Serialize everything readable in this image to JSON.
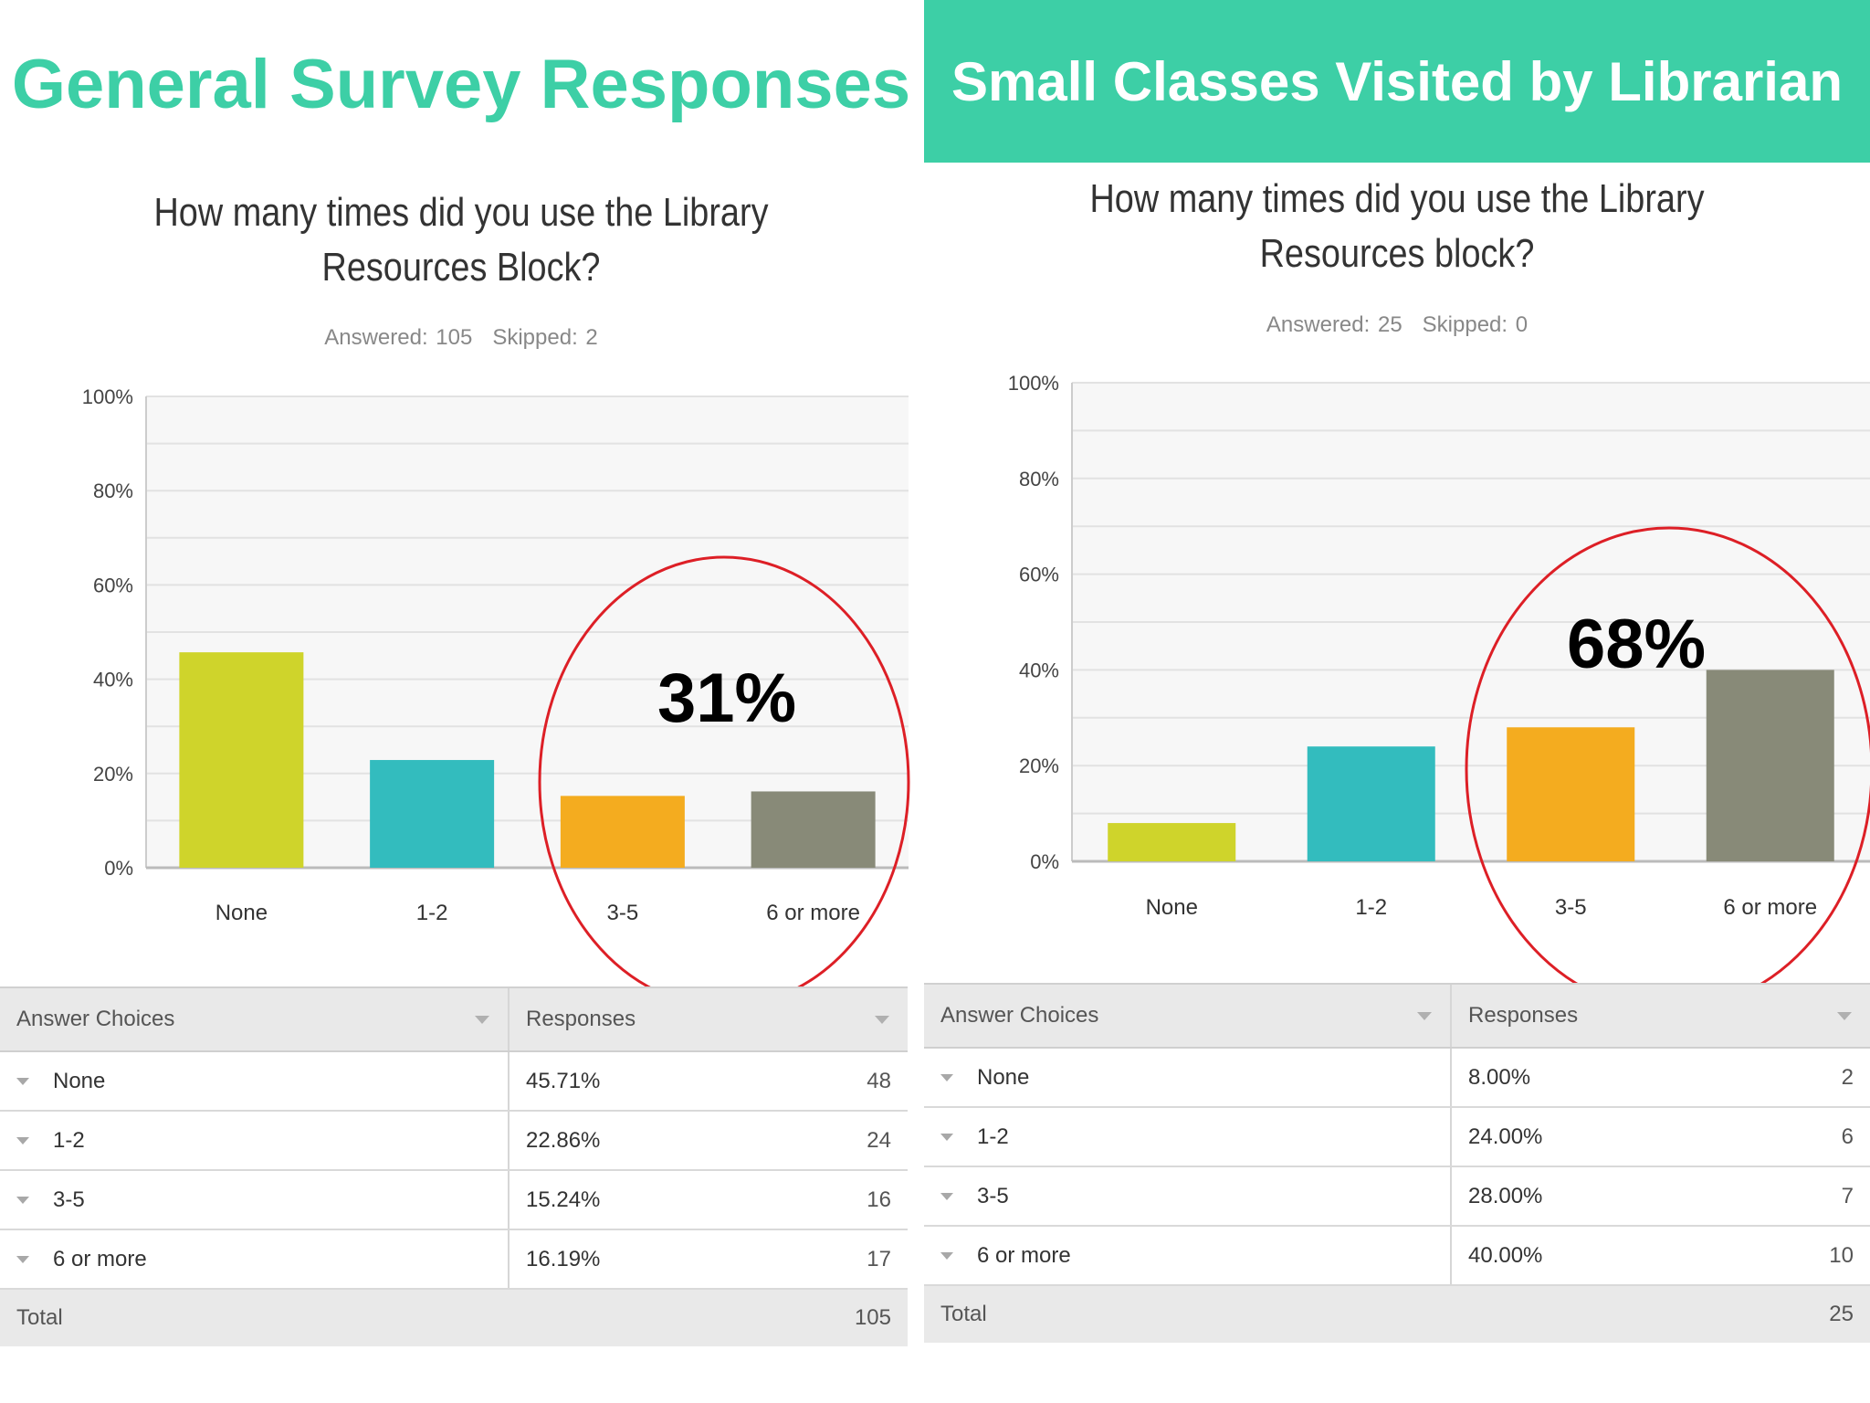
{
  "panels": [
    {
      "heading": "General Survey Responses",
      "question_line1": "How many times did you use the Library",
      "question_line2": "Resources Block?",
      "answered": "Answered: 105",
      "skipped": "Skipped: 2",
      "callout": "31%",
      "table": {
        "col1": "Answer Choices",
        "col2": "Responses",
        "rows": [
          {
            "choice": "None",
            "percent": "45.71%",
            "count": "48"
          },
          {
            "choice": "1-2",
            "percent": "22.86%",
            "count": "24"
          },
          {
            "choice": "3-5",
            "percent": "15.24%",
            "count": "16"
          },
          {
            "choice": "6 or more",
            "percent": "16.19%",
            "count": "17"
          }
        ],
        "total_label": "Total",
        "total_count": "105"
      }
    },
    {
      "heading": "Small Classes Visited by Librarian",
      "question_line1": "How many times did you use the Library",
      "question_line2": "Resources block?",
      "answered": "Answered: 25",
      "skipped": "Skipped: 0",
      "callout": "68%",
      "table": {
        "col1": "Answer Choices",
        "col2": "Responses",
        "rows": [
          {
            "choice": "None",
            "percent": "8.00%",
            "count": "2"
          },
          {
            "choice": "1-2",
            "percent": "24.00%",
            "count": "6"
          },
          {
            "choice": "3-5",
            "percent": "28.00%",
            "count": "7"
          },
          {
            "choice": "6 or more",
            "percent": "40.00%",
            "count": "10"
          }
        ],
        "total_label": "Total",
        "total_count": "25"
      }
    }
  ],
  "chart_data": [
    {
      "type": "bar",
      "title": "How many times did you use the Library Resources Block?",
      "categories": [
        "None",
        "1-2",
        "3-5",
        "6 or more"
      ],
      "values": [
        45.71,
        22.86,
        15.24,
        16.19
      ],
      "colors": [
        "#cfd42b",
        "#33bcbe",
        "#f4ac1f",
        "#888a78"
      ],
      "ylim": [
        0,
        100
      ],
      "yticks": [
        "0%",
        "20%",
        "40%",
        "60%",
        "80%",
        "100%"
      ],
      "grid": true,
      "highlight_categories": [
        "3-5",
        "6 or more"
      ],
      "highlight_color": "#dd1f26"
    },
    {
      "type": "bar",
      "title": "How many times did you use the Library Resources block?",
      "categories": [
        "None",
        "1-2",
        "3-5",
        "6 or more"
      ],
      "values": [
        8.0,
        24.0,
        28.0,
        40.0
      ],
      "colors": [
        "#cfd42b",
        "#33bcbe",
        "#f4ac1f",
        "#888a78"
      ],
      "ylim": [
        0,
        100
      ],
      "yticks": [
        "0%",
        "20%",
        "40%",
        "60%",
        "80%",
        "100%"
      ],
      "grid": true,
      "highlight_categories": [
        "3-5",
        "6 or more"
      ],
      "highlight_color": "#dd1f26"
    }
  ]
}
